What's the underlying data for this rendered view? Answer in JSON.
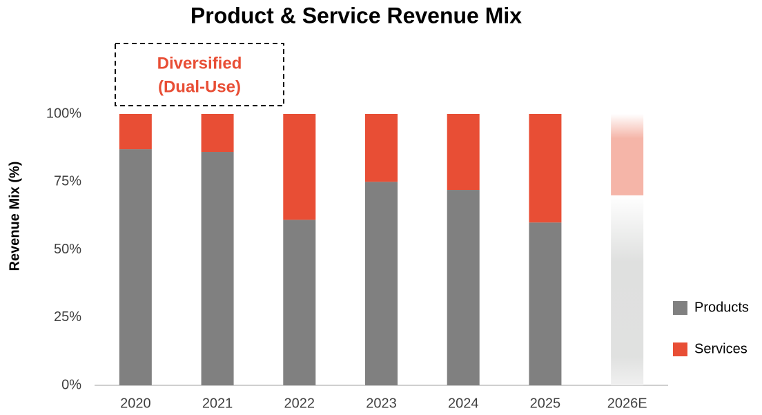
{
  "chart_data": {
    "type": "stacked_bar",
    "title": "Product & Service Revenue Mix",
    "y_label": "Revenue Mix (%)",
    "categories": [
      "2020",
      "2021",
      "2022",
      "2023",
      "2024",
      "2025",
      "2026E"
    ],
    "series": [
      {
        "name": "Products",
        "color": "#808080",
        "values": [
          87,
          86,
          61,
          75,
          72,
          60,
          70
        ]
      },
      {
        "name": "Services",
        "color": "#e84e35",
        "values": [
          13,
          14,
          39,
          25,
          28,
          40,
          30
        ]
      }
    ],
    "faded": [
      false,
      false,
      false,
      false,
      false,
      false,
      true
    ],
    "ylim": [
      0,
      100
    ],
    "yticks": [
      {
        "value": 0,
        "label": "0%"
      },
      {
        "value": 25,
        "label": "25%"
      },
      {
        "value": 50,
        "label": "50%"
      },
      {
        "value": 75,
        "label": "75%"
      },
      {
        "value": 100,
        "label": "100%"
      }
    ],
    "grid": false,
    "legend": "right",
    "annotation": {
      "lines": [
        "Diversified",
        "(Dual-Use)"
      ],
      "color": "#e84e35"
    }
  }
}
